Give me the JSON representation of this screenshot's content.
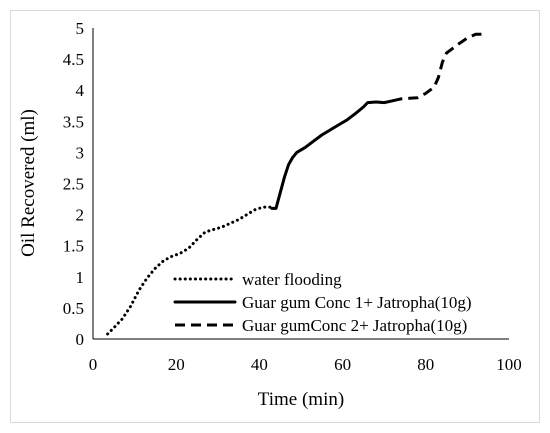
{
  "chart_data": {
    "type": "line",
    "title": "",
    "xlabel": "Time (min)",
    "ylabel": "Oil Recovered (ml)",
    "xlim": [
      0,
      100
    ],
    "ylim": [
      0,
      5
    ],
    "xticks": [
      "0",
      "20",
      "40",
      "60",
      "80",
      "100"
    ],
    "yticks": [
      "0",
      "0.5",
      "1",
      "1.5",
      "2",
      "2.5",
      "3",
      "3.5",
      "4",
      "4.5",
      "5"
    ],
    "grid": false,
    "legend_position": "lower-right",
    "series": [
      {
        "name": "water flooding",
        "style": "dotted",
        "color": "#000000",
        "x": [
          3.5,
          5,
          7,
          9,
          11,
          13,
          15,
          17,
          19,
          21,
          23,
          25,
          27,
          29,
          31,
          33,
          35,
          37,
          39,
          41,
          43
        ],
        "y": [
          0.08,
          0.18,
          0.32,
          0.52,
          0.78,
          0.98,
          1.14,
          1.26,
          1.33,
          1.38,
          1.46,
          1.6,
          1.72,
          1.76,
          1.8,
          1.86,
          1.92,
          2.0,
          2.08,
          2.12,
          2.12
        ]
      },
      {
        "name": "Guar gum Conc 1+  Jatropha(10g)",
        "style": "solid",
        "color": "#000000",
        "x": [
          43,
          44,
          45,
          46,
          47,
          48,
          49,
          51,
          53,
          55,
          57,
          59,
          61,
          63,
          65,
          66,
          68,
          70,
          72
        ],
        "y": [
          2.1,
          2.1,
          2.35,
          2.6,
          2.8,
          2.92,
          3.0,
          3.08,
          3.18,
          3.28,
          3.36,
          3.44,
          3.52,
          3.62,
          3.73,
          3.8,
          3.81,
          3.8,
          3.83
        ]
      },
      {
        "name": "Guar gumConc 2+  Jatropha(10g)",
        "style": "dashed",
        "color": "#000000",
        "x": [
          72,
          74,
          76,
          78,
          80,
          82,
          83,
          84,
          85,
          86,
          88,
          90,
          92,
          94
        ],
        "y": [
          3.83,
          3.86,
          3.87,
          3.88,
          3.95,
          4.05,
          4.2,
          4.45,
          4.6,
          4.65,
          4.75,
          4.84,
          4.9,
          4.9
        ]
      }
    ]
  }
}
